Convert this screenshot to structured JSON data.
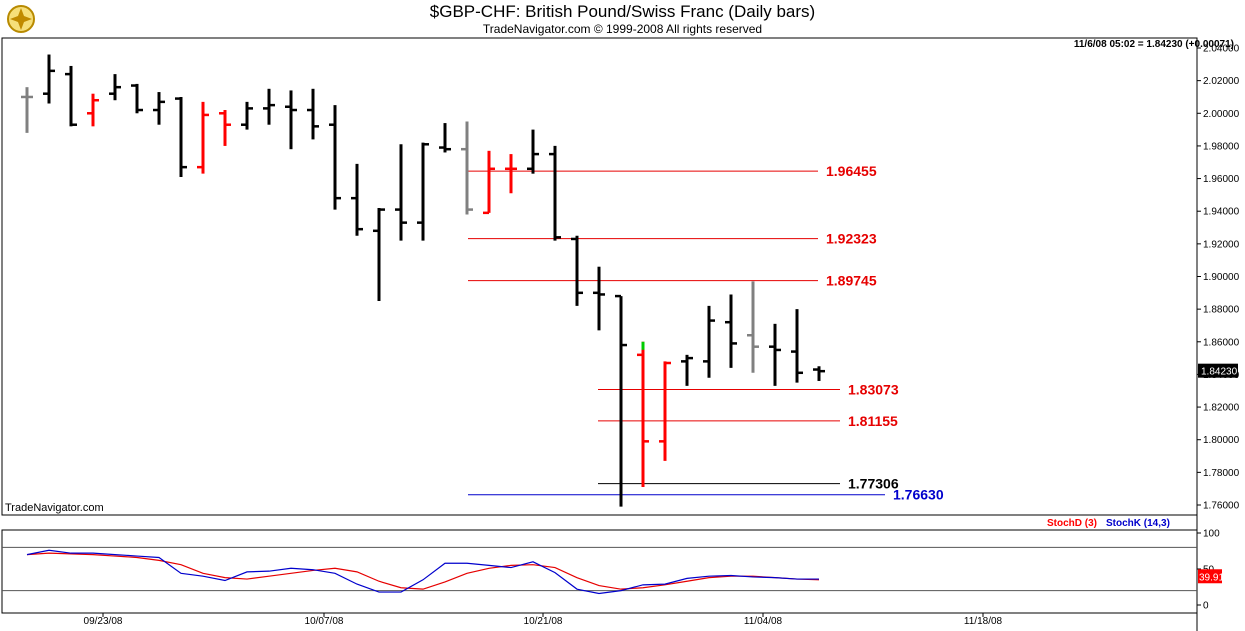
{
  "header": {
    "title": "$GBP-CHF:  British Pound/Swiss Franc  (Daily bars)",
    "subtitle": "TradeNavigator.com © 1999-2008 All rights reserved"
  },
  "quote": {
    "readout": "11/6/08 05:02 = 1.84230 (+0.00071)",
    "last_label": "1.84230"
  },
  "watermark": "TradeNavigator.com",
  "colors": {
    "up": "#000000",
    "down": "#ff0000",
    "neutral": "#808080",
    "green": "#00cc00",
    "fib_line": "#e60000",
    "low_line": "#0000cc",
    "stoch_d": "#ff0000",
    "stoch_k": "#0000cc"
  },
  "chart_data": [
    {
      "type": "ohlc",
      "title": "$GBP-CHF:  British Pound/Swiss Franc  (Daily bars)",
      "ylim": [
        1.75,
        2.05
      ],
      "yticks": [
        "2.04000",
        "2.02000",
        "2.00000",
        "1.98000",
        "1.96000",
        "1.94000",
        "1.92000",
        "1.90000",
        "1.88000",
        "1.86000",
        "1.84000",
        "1.82000",
        "1.80000",
        "1.78000",
        "1.76000"
      ],
      "xtick_labels": [
        "09/23/08",
        "10/07/08",
        "10/21/08",
        "11/04/08",
        "11/18/08"
      ],
      "bars": [
        {
          "o": 2.01,
          "h": 2.016,
          "l": 1.988,
          "c": 2.01,
          "color": "neutral"
        },
        {
          "o": 2.012,
          "h": 2.036,
          "l": 2.006,
          "c": 2.026,
          "color": "up"
        },
        {
          "o": 2.024,
          "h": 2.029,
          "l": 1.992,
          "c": 1.993,
          "color": "up"
        },
        {
          "o": 2.0,
          "h": 2.012,
          "l": 1.992,
          "c": 2.008,
          "color": "down"
        },
        {
          "o": 2.012,
          "h": 2.024,
          "l": 2.008,
          "c": 2.016,
          "color": "up"
        },
        {
          "o": 2.017,
          "h": 2.018,
          "l": 2.0,
          "c": 2.002,
          "color": "up"
        },
        {
          "o": 2.002,
          "h": 2.013,
          "l": 1.993,
          "c": 2.007,
          "color": "up"
        },
        {
          "o": 2.009,
          "h": 2.01,
          "l": 1.961,
          "c": 1.967,
          "color": "up"
        },
        {
          "o": 1.967,
          "h": 2.007,
          "l": 1.963,
          "c": 1.999,
          "color": "down"
        },
        {
          "o": 2.0,
          "h": 2.002,
          "l": 1.98,
          "c": 1.993,
          "color": "down"
        },
        {
          "o": 1.993,
          "h": 2.007,
          "l": 1.99,
          "c": 2.003,
          "color": "up"
        },
        {
          "o": 2.003,
          "h": 2.015,
          "l": 1.993,
          "c": 2.005,
          "color": "up"
        },
        {
          "o": 2.004,
          "h": 2.014,
          "l": 1.978,
          "c": 2.002,
          "color": "up"
        },
        {
          "o": 2.002,
          "h": 2.015,
          "l": 1.984,
          "c": 1.992,
          "color": "up"
        },
        {
          "o": 1.993,
          "h": 2.005,
          "l": 1.941,
          "c": 1.948,
          "color": "up"
        },
        {
          "o": 1.948,
          "h": 1.969,
          "l": 1.925,
          "c": 1.929,
          "color": "up"
        },
        {
          "o": 1.928,
          "h": 1.942,
          "l": 1.885,
          "c": 1.941,
          "color": "up"
        },
        {
          "o": 1.941,
          "h": 1.981,
          "l": 1.922,
          "c": 1.933,
          "color": "up"
        },
        {
          "o": 1.933,
          "h": 1.982,
          "l": 1.922,
          "c": 1.981,
          "color": "up"
        },
        {
          "o": 1.979,
          "h": 1.994,
          "l": 1.976,
          "c": 1.978,
          "color": "up"
        },
        {
          "o": 1.978,
          "h": 1.995,
          "l": 1.938,
          "c": 1.941,
          "color": "neutral"
        },
        {
          "o": 1.939,
          "h": 1.977,
          "l": 1.939,
          "c": 1.966,
          "color": "down"
        },
        {
          "o": 1.966,
          "h": 1.975,
          "l": 1.951,
          "c": 1.966,
          "color": "down"
        },
        {
          "o": 1.966,
          "h": 1.99,
          "l": 1.963,
          "c": 1.975,
          "color": "up"
        },
        {
          "o": 1.975,
          "h": 1.98,
          "l": 1.922,
          "c": 1.924,
          "color": "up"
        },
        {
          "o": 1.923,
          "h": 1.925,
          "l": 1.882,
          "c": 1.89,
          "color": "up"
        },
        {
          "o": 1.89,
          "h": 1.906,
          "l": 1.867,
          "c": 1.889,
          "color": "up"
        },
        {
          "o": 1.888,
          "h": 1.888,
          "l": 1.759,
          "c": 1.858,
          "color": "up"
        },
        {
          "o": 1.852,
          "h": 1.86,
          "l": 1.771,
          "c": 1.799,
          "color": "down"
        },
        {
          "o": 1.799,
          "h": 1.848,
          "l": 1.787,
          "c": 1.847,
          "color": "down"
        },
        {
          "o": 1.848,
          "h": 1.852,
          "l": 1.833,
          "c": 1.85,
          "color": "up"
        },
        {
          "o": 1.848,
          "h": 1.882,
          "l": 1.838,
          "c": 1.873,
          "color": "up"
        },
        {
          "o": 1.872,
          "h": 1.889,
          "l": 1.844,
          "c": 1.859,
          "color": "up"
        },
        {
          "o": 1.864,
          "h": 1.897,
          "l": 1.841,
          "c": 1.857,
          "color": "neutral"
        },
        {
          "o": 1.857,
          "h": 1.871,
          "l": 1.833,
          "c": 1.855,
          "color": "up"
        },
        {
          "o": 1.854,
          "h": 1.88,
          "l": 1.835,
          "c": 1.841,
          "color": "up"
        },
        {
          "o": 1.843,
          "h": 1.845,
          "l": 1.836,
          "c": 1.842,
          "color": "up"
        }
      ],
      "levels": [
        {
          "value": 1.96455,
          "label": "1.96455",
          "color": "red"
        },
        {
          "value": 1.92323,
          "label": "1.92323",
          "color": "red"
        },
        {
          "value": 1.89745,
          "label": "1.89745",
          "color": "red"
        },
        {
          "value": 1.83073,
          "label": "1.83073",
          "color": "red"
        },
        {
          "value": 1.81155,
          "label": "1.81155",
          "color": "red"
        },
        {
          "value": 1.77306,
          "label": "1.77306",
          "color": "black"
        },
        {
          "value": 1.7663,
          "label": "1.76630",
          "color": "blue"
        }
      ]
    },
    {
      "type": "line",
      "title": "",
      "legend": [
        "StochD (3)",
        "StochK (14,3)"
      ],
      "ylim": [
        0,
        100
      ],
      "yticks": [
        "100",
        "50",
        "0"
      ],
      "reference_lines": [
        80,
        20
      ],
      "last_label": "39.91",
      "series": [
        {
          "name": "StochD (3)",
          "color": "red",
          "values": [
            70,
            72,
            71,
            70,
            68,
            66,
            62,
            56,
            44,
            38,
            36,
            40,
            44,
            48,
            51,
            46,
            33,
            24,
            22,
            32,
            44,
            51,
            55,
            56,
            52,
            38,
            27,
            22,
            24,
            28,
            33,
            38,
            40,
            40,
            38,
            36,
            35
          ]
        },
        {
          "name": "StochK (14,3)",
          "color": "blue",
          "values": [
            70,
            76,
            72,
            72,
            70,
            68,
            66,
            44,
            40,
            34,
            46,
            47,
            51,
            49,
            44,
            29,
            18,
            18,
            35,
            58,
            58,
            55,
            52,
            60,
            45,
            22,
            16,
            20,
            28,
            29,
            37,
            40,
            41,
            39,
            38,
            36,
            36
          ]
        }
      ]
    }
  ]
}
